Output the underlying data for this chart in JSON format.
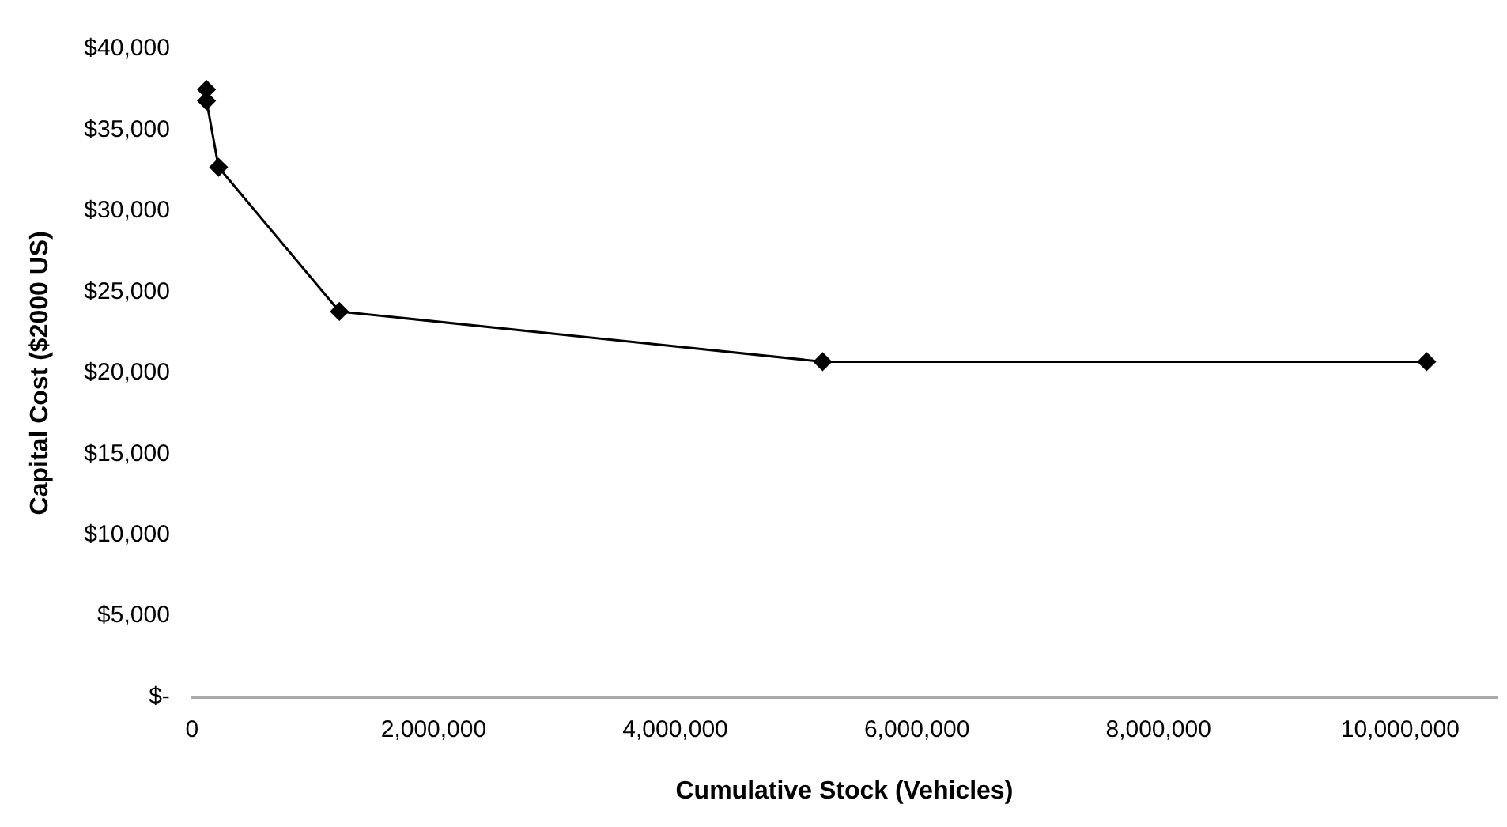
{
  "chart_data": {
    "type": "line",
    "xlabel": "Cumulative Stock (Vehicles)",
    "ylabel": "Capital Cost ($2000 US)",
    "x": [
      120000,
      120000,
      220000,
      1220000,
      5220000,
      10220000
    ],
    "series": [
      {
        "color": "#000000",
        "values": [
          37500,
          36800,
          32700,
          23800,
          20700,
          20700
        ]
      }
    ],
    "xlim": [
      0,
      10800000
    ],
    "xticks": [
      0,
      {
        "value": 2000000,
        "label": "2,000,000"
      },
      {
        "value": 4000000,
        "label": "4,000,000"
      },
      {
        "value": 6000000,
        "label": "6,000,000"
      },
      {
        "value": 8000000,
        "label": "8,000,000"
      },
      {
        "value": 10000000,
        "label": "10,000,000"
      }
    ],
    "ylim": [
      0,
      40000
    ],
    "yticks": [
      {
        "value": 0,
        "label": "$-"
      },
      {
        "value": 5000,
        "label": "$5,000"
      },
      {
        "value": 10000,
        "label": "$10,000"
      },
      {
        "value": 15000,
        "label": "$15,000"
      },
      {
        "value": 20000,
        "label": "$20,000"
      },
      {
        "value": 25000,
        "label": "$25,000"
      },
      {
        "value": 30000,
        "label": "$30,000"
      },
      {
        "value": 35000,
        "label": "$35,000"
      },
      {
        "value": 40000,
        "label": "$40,000"
      }
    ],
    "grid": false,
    "legend": false,
    "marker": "diamond",
    "line_style": "solid"
  }
}
